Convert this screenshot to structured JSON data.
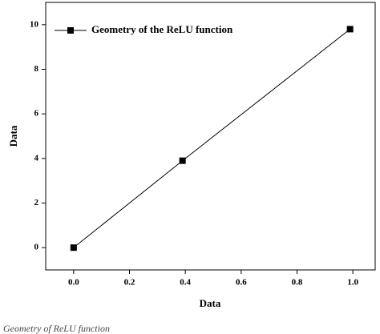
{
  "chart_data": {
    "type": "line",
    "x_label": "Data",
    "y_label": "Data",
    "x": [
      0.0,
      0.39,
      0.99
    ],
    "series": [
      {
        "name": "Geometry of the ReLU function",
        "color": "#000000",
        "values": [
          0,
          3.9,
          9.8
        ]
      }
    ],
    "xlim": [
      -0.1,
      1.08
    ],
    "xticks": [
      {
        "value": 0,
        "label": "0.0"
      },
      0.2,
      0.4,
      0.6,
      0.8,
      {
        "value": 1,
        "label": "1.0"
      }
    ],
    "ylim": [
      -1,
      11
    ],
    "yticks": [
      0,
      2,
      4,
      6,
      8,
      10
    ],
    "grid": false,
    "legend": "upper-left",
    "caption": "Geometry of ReLU function"
  }
}
